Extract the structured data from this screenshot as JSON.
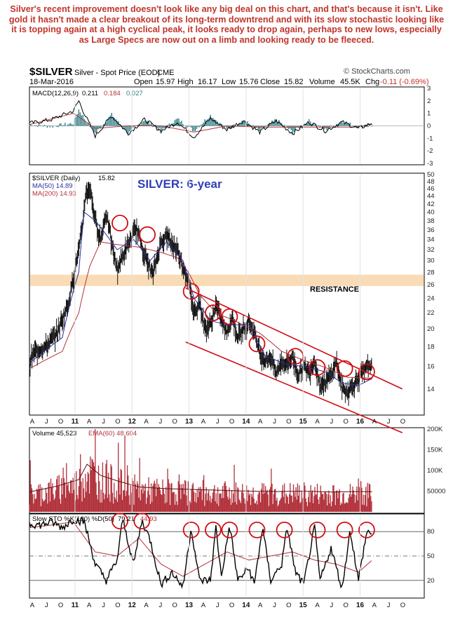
{
  "annotation": "Silver's recent improvement doesn't look like any big deal on this chart, and that's because it isn't. Like gold it hasn't made a clear breakout of its long-term downtrend and with its slow stochastic looking like it is topping again at a high cyclical peak, it looks ready to drop again, perhaps to new lows, especially as Large Specs are now out on a limb and looking ready to be fleeced.",
  "header": {
    "symbol": "$SILVER",
    "description": "Silver - Spot Price (EOD)",
    "exchange": "CME",
    "date": "18-Mar-2016",
    "open_label": "Open",
    "open": "15.97",
    "high_label": "High",
    "high": "16.17",
    "low_label": "Low",
    "low": "15.76",
    "close_label": "Close",
    "close": "15.82",
    "volume_label": "Volume",
    "volume": "45.5K",
    "chg_label": "Chg",
    "chg": "-0.11 (-0.69%)",
    "watermark": "© StockCharts.com"
  },
  "colors": {
    "price": "#111111",
    "ma50": "#2b2f9e",
    "ma200": "#b2323c",
    "volume": "#b2323c",
    "resistance_band": "#f9dcb6",
    "channel": "#d10b12",
    "circle": "#d10b12",
    "macd_hist": "#2e7f86",
    "title_blue": "#2f3fb5"
  },
  "chart_data": [
    {
      "type": "line",
      "panel": "macd",
      "legend": [
        "MACD(12,26,9)",
        "0.211",
        "0.184",
        "0.027"
      ],
      "ylim": [
        -3,
        3
      ],
      "y_ticks": [
        "3",
        "2",
        "1",
        "0",
        "-1",
        "-2",
        "-3"
      ],
      "series": [
        {
          "name": "MACD",
          "x": [
            0,
            4,
            8,
            9,
            10,
            12,
            15,
            18,
            21,
            24,
            27,
            30,
            33,
            36,
            39,
            42,
            45,
            48,
            51,
            54,
            57,
            60,
            62.5
          ],
          "values": [
            0.2,
            0.5,
            1.2,
            2.0,
            1.0,
            -0.8,
            0.8,
            -0.6,
            0.5,
            -0.4,
            0.3,
            -0.9,
            0.6,
            -0.3,
            0.4,
            -0.5,
            0.4,
            -0.6,
            0.3,
            -0.4,
            0.3,
            -0.2,
            0.21
          ]
        },
        {
          "name": "Signal",
          "x": [
            0,
            8,
            12,
            18,
            24,
            30,
            36,
            42,
            48,
            54,
            60,
            62.5
          ],
          "values": [
            0.1,
            1.0,
            -0.2,
            0.0,
            0.0,
            -0.5,
            0.0,
            -0.1,
            -0.1,
            -0.1,
            -0.1,
            0.184
          ]
        }
      ]
    },
    {
      "type": "line",
      "panel": "price",
      "title": "SILVER: 6-year",
      "legend": {
        "symbol": "$SILVER (Daily)",
        "last": "15.82",
        "ma50": "MA(50) 14.89",
        "ma200": "MA(200) 14.93"
      },
      "ylim": [
        12.5,
        50
      ],
      "log_scale": true,
      "y_ticks": [
        50,
        48,
        46,
        44,
        42,
        40,
        38,
        36,
        34,
        32,
        30,
        28,
        26,
        24,
        22,
        20,
        18,
        16,
        14
      ],
      "x_months": [
        "A",
        "J",
        "O",
        "11",
        "A",
        "J",
        "O",
        "12",
        "A",
        "J",
        "O",
        "13",
        "A",
        "J",
        "O",
        "14",
        "A",
        "J",
        "O",
        "15",
        "A",
        "J",
        "O",
        "16",
        "A",
        "J",
        "O"
      ],
      "resistance": {
        "label": "RESISTANCE",
        "from": 25.8,
        "to": 27.6
      },
      "series": [
        {
          "name": "$SILVER",
          "x": [
            0,
            1,
            3,
            5,
            7,
            8,
            9,
            9.6,
            10.2,
            11,
            12,
            13,
            14,
            15,
            16,
            18,
            19.5,
            21,
            22.5,
            24,
            25,
            26,
            27,
            28,
            29,
            30,
            31,
            32,
            33,
            34,
            35,
            36,
            37,
            38,
            39,
            40,
            41,
            42,
            43,
            44,
            45,
            46,
            47,
            48,
            49,
            50,
            51,
            52,
            53,
            54,
            55,
            56,
            57,
            58,
            59,
            60,
            61,
            62,
            62.5
          ],
          "values": [
            16.5,
            17.5,
            18.0,
            19.5,
            23.0,
            27.0,
            32.0,
            36.0,
            44.0,
            46.5,
            38.0,
            34.0,
            40.0,
            33.0,
            28.5,
            33.0,
            36.5,
            31.0,
            27.5,
            33.5,
            35.0,
            33.0,
            32.0,
            29.0,
            26.5,
            22.0,
            23.5,
            20.0,
            20.5,
            23.0,
            21.0,
            19.5,
            21.5,
            19.0,
            20.0,
            21.0,
            19.5,
            17.5,
            16.5,
            17.0,
            15.3,
            16.5,
            16.2,
            17.0,
            15.2,
            16.0,
            15.5,
            16.6,
            14.3,
            14.6,
            15.2,
            16.5,
            14.0,
            13.8,
            14.3,
            15.0,
            15.5,
            16.2,
            15.82
          ]
        },
        {
          "name": "MA(50)",
          "x": [
            0,
            6,
            9,
            10,
            12,
            16,
            19,
            22,
            25,
            28,
            30,
            33,
            36,
            40,
            43,
            47,
            50,
            54,
            57,
            60,
            62.5
          ],
          "values": [
            16.3,
            19.0,
            28.0,
            40.0,
            38.0,
            32.0,
            34.0,
            30.0,
            33.5,
            30.0,
            24.0,
            21.0,
            20.5,
            20.5,
            17.0,
            16.2,
            16.0,
            15.5,
            14.5,
            14.3,
            14.89
          ]
        },
        {
          "name": "MA(200)",
          "x": [
            0,
            6,
            9,
            11,
            13,
            16,
            20,
            24,
            27,
            29,
            31,
            34,
            38,
            42,
            46,
            50,
            54,
            58,
            62.5
          ],
          "values": [
            15.8,
            17.5,
            22.0,
            29.0,
            33.5,
            33.0,
            32.5,
            31.5,
            30.5,
            28.0,
            24.5,
            22.0,
            20.8,
            19.5,
            17.5,
            16.6,
            15.9,
            15.0,
            14.93
          ]
        }
      ],
      "channel_upper": {
        "x": [
          28.5,
          68
        ],
        "values": [
          25.5,
          14.0
        ]
      },
      "channel_lower": {
        "x": [
          28.5,
          68
        ],
        "values": [
          18.5,
          10.8
        ]
      },
      "peak_circles": [
        {
          "x": 16.5,
          "value": 37.5
        },
        {
          "x": 21.5,
          "value": 35.0
        },
        {
          "x": 29.5,
          "value": 25.0
        },
        {
          "x": 33.5,
          "value": 22.0
        },
        {
          "x": 36.5,
          "value": 21.5
        },
        {
          "x": 41.5,
          "value": 18.3
        },
        {
          "x": 48.5,
          "value": 17.0
        },
        {
          "x": 52.5,
          "value": 15.9
        },
        {
          "x": 57.5,
          "value": 15.8
        },
        {
          "x": 61.5,
          "value": 15.5
        }
      ]
    },
    {
      "type": "bar",
      "panel": "volume",
      "legend": [
        "Volume 45,523",
        "EMA(60) 48,604"
      ],
      "ylim": [
        0,
        200000
      ],
      "y_ticks": [
        "200K",
        "150K",
        "100K",
        "50000"
      ],
      "series": [
        {
          "name": "EMA(60)",
          "x": [
            0,
            5,
            9,
            10.5,
            13,
            16,
            20,
            25,
            30,
            35,
            40,
            45,
            50,
            55,
            60,
            62.5
          ],
          "values": [
            48000,
            62000,
            78000,
            115000,
            88000,
            75000,
            60000,
            56000,
            54000,
            52000,
            50000,
            49000,
            50000,
            48000,
            49000,
            48604
          ]
        }
      ]
    },
    {
      "type": "line",
      "panel": "stochastic",
      "legend": [
        "Slow STO %K(100) %D(50)",
        "79.21",
        "44.93"
      ],
      "ylim": [
        0,
        100
      ],
      "y_ticks": [
        80,
        50,
        20
      ],
      "series": [
        {
          "name": "%K",
          "x": [
            0,
            2,
            4,
            6,
            8,
            10,
            12,
            14,
            16,
            17,
            19,
            20.5,
            22,
            24,
            26,
            28,
            29.5,
            31,
            33,
            34,
            35,
            36.5,
            38,
            40,
            41,
            42.5,
            44,
            46,
            47,
            48.5,
            50,
            52,
            53,
            55,
            57,
            58.5,
            60,
            61.5,
            62.5
          ],
          "values": [
            90,
            88,
            92,
            85,
            95,
            92,
            40,
            20,
            45,
            95,
            40,
            94,
            70,
            15,
            30,
            12,
            85,
            20,
            20,
            85,
            25,
            88,
            20,
            35,
            15,
            85,
            20,
            40,
            85,
            30,
            15,
            85,
            20,
            60,
            10,
            82,
            20,
            79.21,
            79.21
          ]
        },
        {
          "name": "%D",
          "x": [
            0,
            4,
            8,
            12,
            16,
            20,
            24,
            28,
            32,
            36,
            40,
            44,
            48,
            52,
            56,
            60,
            62.5
          ],
          "values": [
            85,
            88,
            92,
            55,
            50,
            72,
            40,
            25,
            40,
            55,
            45,
            50,
            55,
            45,
            40,
            30,
            44.93
          ]
        }
      ],
      "peak_circles": [
        {
          "x": 16.5,
          "value": 93
        },
        {
          "x": 20.5,
          "value": 93
        },
        {
          "x": 29.5,
          "value": 82
        },
        {
          "x": 33.5,
          "value": 82
        },
        {
          "x": 36.5,
          "value": 82
        },
        {
          "x": 41.5,
          "value": 82
        },
        {
          "x": 46.5,
          "value": 82
        },
        {
          "x": 52.5,
          "value": 82
        },
        {
          "x": 57.5,
          "value": 82
        },
        {
          "x": 61.5,
          "value": 82
        }
      ]
    }
  ]
}
